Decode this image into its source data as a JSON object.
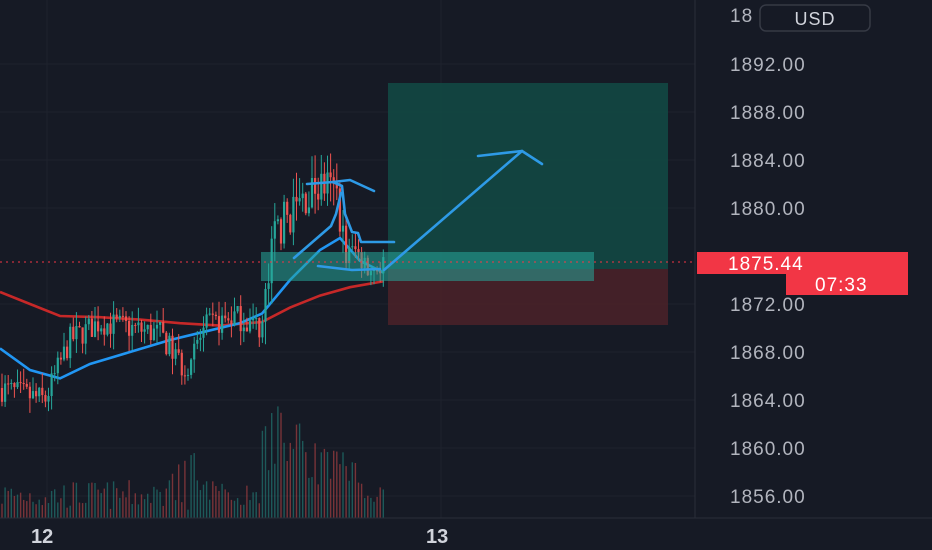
{
  "currency_label": "USD",
  "price_badge": {
    "price": "1875.44",
    "countdown": "07:33",
    "color": "#f23645"
  },
  "colors": {
    "background": "#161a25",
    "grid": "#1e222d",
    "up": "#26a69a",
    "down": "#ef5350",
    "blue_ma": "#2196f3",
    "red_ma": "#c62828",
    "profit_zone": "#124b45",
    "loss_zone": "#4b2229",
    "entry_zone": "#26a69a",
    "drawing": "#2e9ae6",
    "axis_text": "#b2b5be"
  },
  "chart_data": {
    "type": "candlestick",
    "instrument_currency": "USD",
    "y_axis": {
      "ticks": [
        "1892.00",
        "1888.00",
        "1884.00",
        "1880.00",
        "1872.00",
        "1868.00",
        "1864.00",
        "1860.00",
        "1856.00"
      ],
      "partial_top_tick": "18",
      "ylim": [
        1854,
        1896
      ]
    },
    "x_axis": {
      "ticks": [
        "12",
        "13"
      ]
    },
    "last_price": 1875.44,
    "countdown": "07:33",
    "annotations": {
      "long_position": {
        "entry": 1874.0,
        "target": 1890.6,
        "stop": 1870.6
      },
      "entry_zone": {
        "top": 1875.2,
        "bottom": 1873.0
      },
      "projection_arrow": {
        "from": 1874.1,
        "to": 1885.0
      }
    },
    "series": [
      {
        "type": "moving_average",
        "color": "#2196f3"
      },
      {
        "type": "moving_average",
        "color": "#c62828"
      },
      {
        "type": "volume"
      }
    ]
  }
}
